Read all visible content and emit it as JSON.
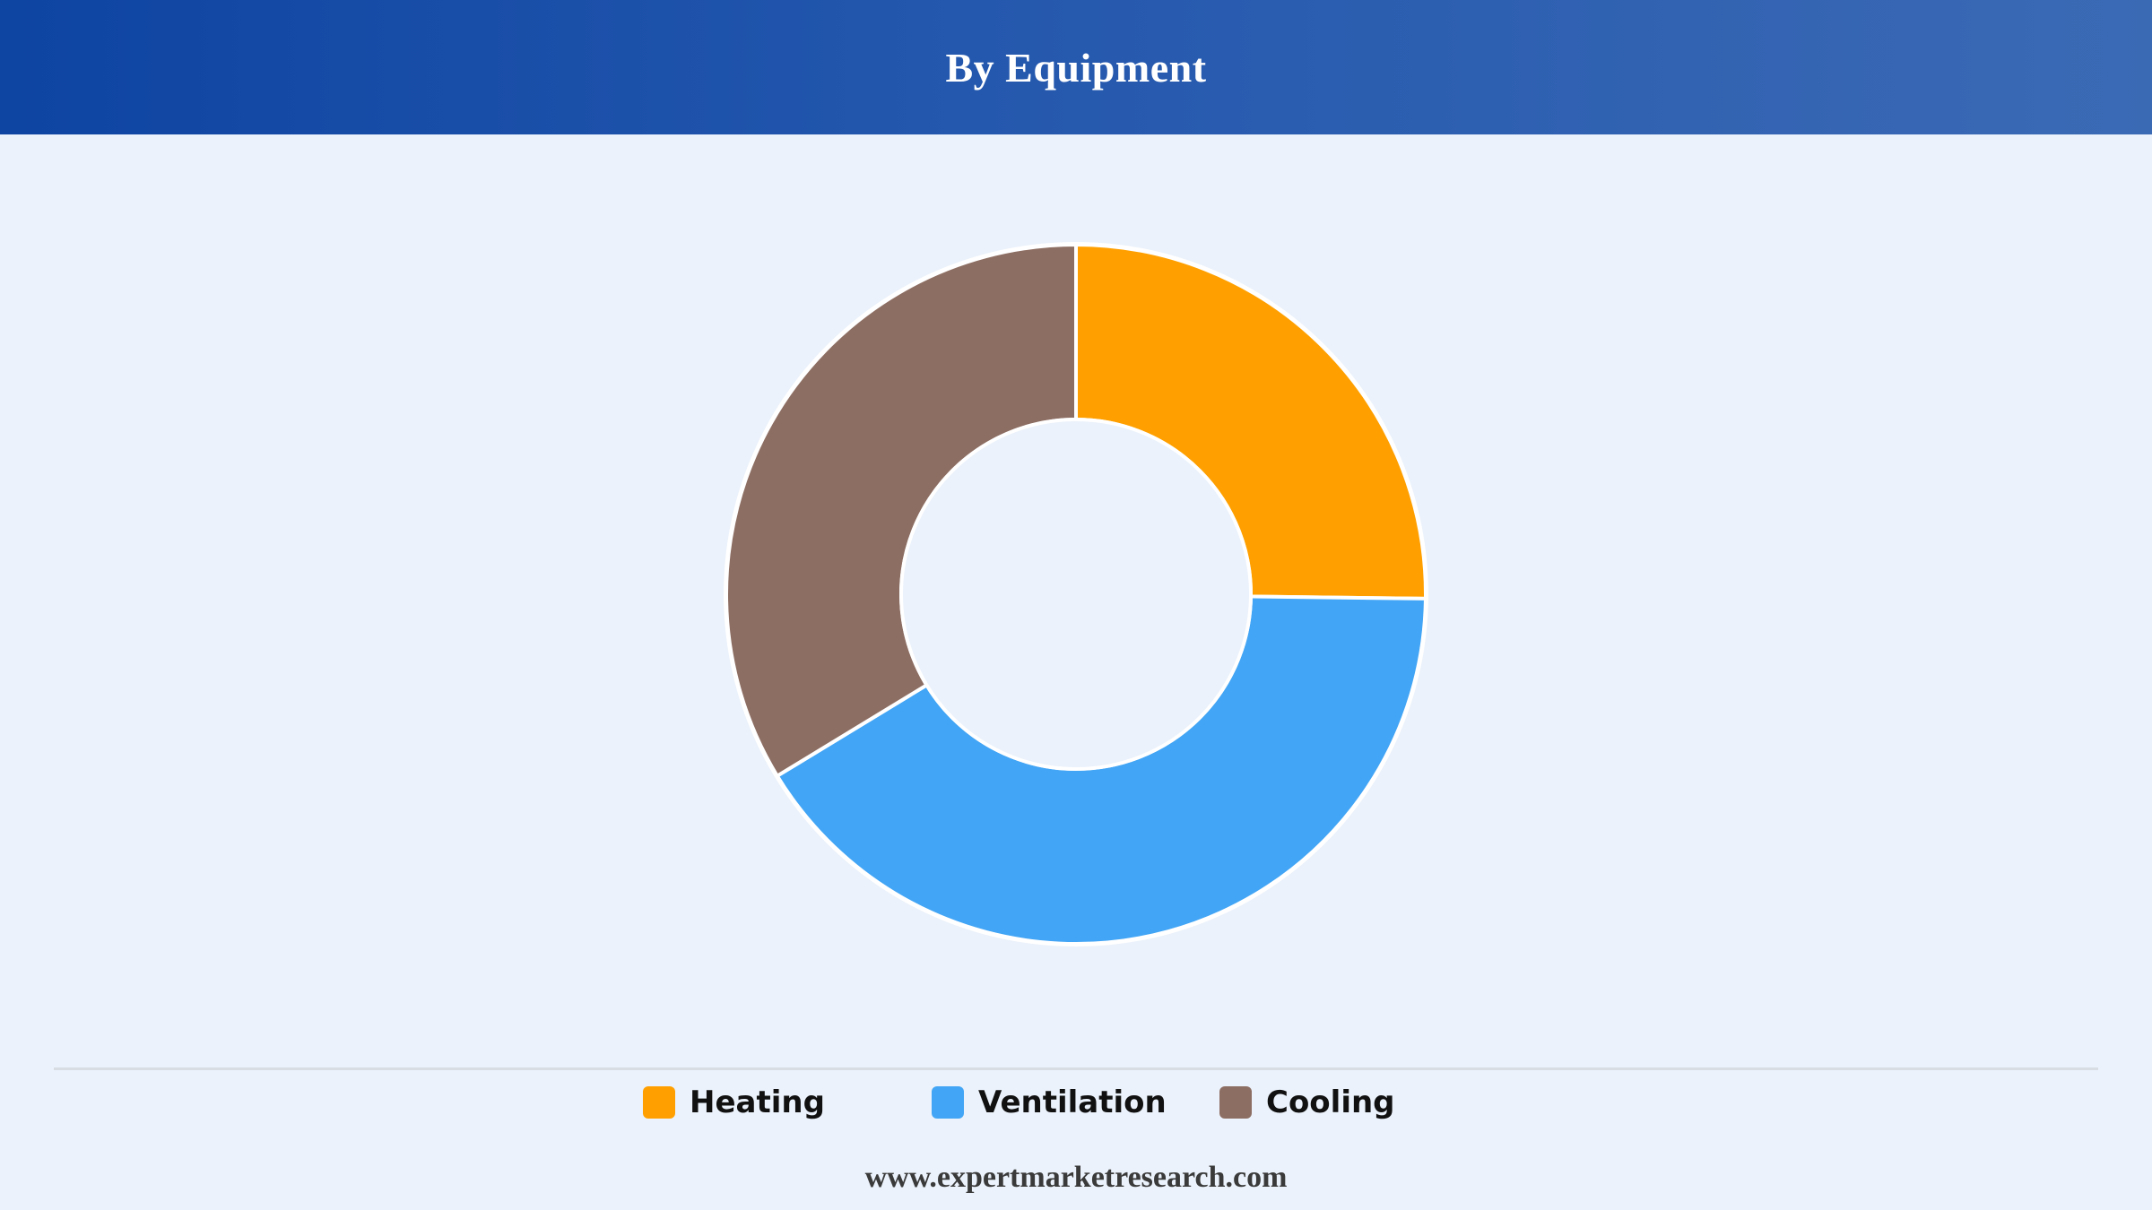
{
  "header": {
    "title": "By Equipment"
  },
  "chart_data": {
    "type": "pie",
    "title": "By Equipment",
    "donut": true,
    "categories": [
      "Heating",
      "Ventilation",
      "Cooling"
    ],
    "values": [
      25.2,
      41.1,
      33.7
    ],
    "colors": [
      "#ffa000",
      "#42a5f5",
      "#8d6e63"
    ],
    "legend_position": "bottom"
  },
  "legend": {
    "items": [
      {
        "label": "Heating",
        "color": "#ffa000"
      },
      {
        "label": "Ventilation",
        "color": "#42a5f5"
      },
      {
        "label": "Cooling",
        "color": "#8d6e63"
      }
    ]
  },
  "footer": {
    "text": "www.expertmarketresearch.com"
  }
}
